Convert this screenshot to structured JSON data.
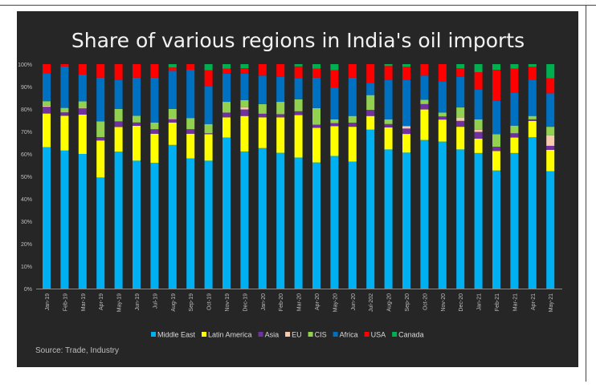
{
  "chart_data": {
    "type": "bar",
    "stacked": true,
    "percent_stacked": true,
    "title": "Share of various regions in India's oil imports",
    "source": "Source: Trade, Industry",
    "xlabel": "",
    "ylabel": "",
    "ylim": [
      0,
      100
    ],
    "y_ticks": [
      "0%",
      "10%",
      "20%",
      "30%",
      "40%",
      "50%",
      "60%",
      "70%",
      "80%",
      "90%",
      "100%"
    ],
    "legend_position": "bottom",
    "grid": false,
    "categories": [
      "Jan-19",
      "Feb-19",
      "Mar-19",
      "Apr-19",
      "May-19",
      "Jun-19",
      "Jul-19",
      "Aug-19",
      "Sep-19",
      "Oct-19",
      "Nov-19",
      "Dec-19",
      "Jan-20",
      "Feb-20",
      "Mar-20",
      "Apr-20",
      "May-20",
      "Jun-20",
      "Jul-202",
      "Aug-20",
      "Sep-20",
      "Oct-20",
      "Nov-20",
      "Dec-20",
      "Jan-21",
      "Feb-21",
      "Mar-21",
      "Apr-21",
      "May-21"
    ],
    "series": [
      {
        "name": "Middle East",
        "color": "#00b0f0",
        "values": [
          63,
          61.5,
          60,
          49.5,
          61,
          57,
          56,
          64,
          58,
          57,
          67.3,
          61.1,
          62.6,
          60.5,
          58.4,
          56.2,
          59.1,
          56.6,
          70.8,
          62,
          60.6,
          66.2,
          65.5,
          62,
          60.4,
          52.6,
          60.4,
          67.4,
          52.3
        ]
      },
      {
        "name": "Latin America",
        "color": "#ffff00",
        "values": [
          15,
          15.5,
          17.5,
          16.5,
          11,
          15.5,
          13,
          10,
          11,
          11.8,
          9,
          15.8,
          13.7,
          15.8,
          18.9,
          15.4,
          13.3,
          15.5,
          6.1,
          9.8,
          8.3,
          13.6,
          9.8,
          10.1,
          6.4,
          8.7,
          6.9,
          7.3,
          9.5
        ]
      },
      {
        "name": "Asia",
        "color": "#7030a0",
        "values": [
          3,
          1.5,
          2.8,
          1.5,
          2.5,
          1.5,
          2,
          1.5,
          2,
          0.4,
          2.1,
          2.9,
          1.6,
          1.4,
          1.7,
          1.4,
          1.3,
          1.8,
          2.7,
          1.5,
          2.4,
          2.4,
          1.4,
          2.6,
          3,
          1.9,
          1.9,
          0.7,
          1.8
        ]
      },
      {
        "name": "EU",
        "color": "#f8cbad",
        "values": [
          0.5,
          0,
          0.3,
          0,
          0,
          0,
          0,
          0.5,
          0,
          0,
          0,
          1,
          0,
          0,
          0,
          0,
          0,
          0,
          0,
          0,
          0.9,
          0,
          0,
          1.5,
          1,
          0,
          0,
          0,
          4.7
        ]
      },
      {
        "name": "CIS",
        "color": "#92d050",
        "values": [
          2,
          2,
          2.8,
          7,
          5.5,
          3,
          3,
          4,
          5,
          4.1,
          4.8,
          3.2,
          4.3,
          5.5,
          5.3,
          7.4,
          1.7,
          3,
          6.6,
          2.1,
          0.3,
          1.9,
          1.7,
          4.5,
          4.6,
          5.6,
          3.4,
          1.5,
          3.8
        ]
      },
      {
        "name": "Africa",
        "color": "#0070c0",
        "values": [
          12.5,
          18.5,
          12,
          19.5,
          13,
          17,
          20,
          17,
          21.5,
          16.7,
          12.6,
          11.8,
          12.7,
          11.2,
          9.5,
          13.6,
          14.2,
          17.1,
          5.5,
          17.6,
          20.5,
          10.8,
          13.9,
          13.7,
          13.3,
          14.9,
          14.7,
          16.2,
          14.9
        ]
      },
      {
        "name": "USA",
        "color": "#ff0000",
        "values": [
          4,
          1,
          4.6,
          6,
          7,
          6,
          6,
          1.5,
          2.5,
          7.3,
          2.2,
          2.4,
          5.1,
          5.6,
          5.2,
          4,
          7.7,
          6,
          8.3,
          6.2,
          5.8,
          5.1,
          7.7,
          3.7,
          7.7,
          13.8,
          10.7,
          5.7,
          6.7
        ]
      },
      {
        "name": "Canada",
        "color": "#00b050",
        "values": [
          0,
          0,
          0,
          0,
          0,
          0,
          0,
          1.5,
          0,
          2.7,
          2,
          1.8,
          0,
          0,
          1,
          2,
          2.7,
          0,
          0,
          0.8,
          1.2,
          0,
          0,
          1.9,
          3.6,
          2.5,
          2,
          1.2,
          6.3
        ]
      }
    ]
  }
}
